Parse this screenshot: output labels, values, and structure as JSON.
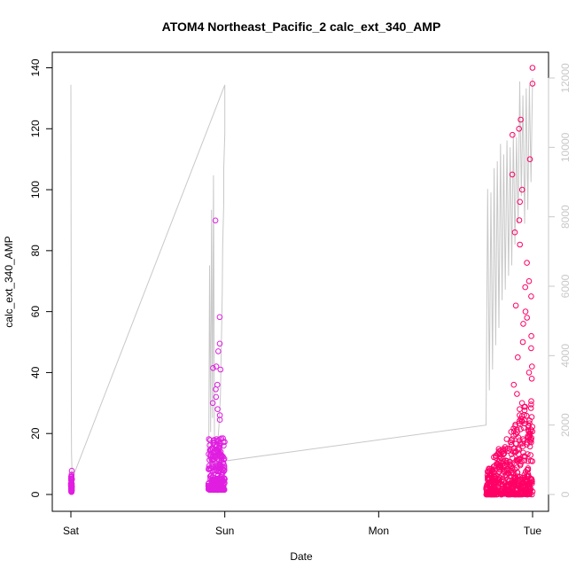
{
  "chart_data": {
    "type": "scatter",
    "title": "ATOM4 Northeast_Pacific_2 calc_ext_340_AMP",
    "xlabel": "Date",
    "ylabel": "calc_ext_340_AMP",
    "x_ticks": [
      "Sat",
      "Sun",
      "Mon",
      "Tue"
    ],
    "xlim": [
      "Sat 00:00",
      "Tue 00:00"
    ],
    "ylim": [
      0,
      140
    ],
    "y_ticks": [
      0,
      20,
      40,
      60,
      80,
      100,
      120,
      140
    ],
    "y2_ticks": [
      0,
      2000,
      4000,
      6000,
      8000,
      10000,
      12000
    ],
    "y2_lim": [
      0,
      12000
    ],
    "grid": false,
    "legend": "none",
    "colors": {
      "points_low": "#e01ee0",
      "points_high": "#ff0066",
      "secondary_line": "#c8c8c8",
      "axis": "#000000",
      "secondary_axis": "#c8c8c8"
    },
    "series": [
      {
        "role": "points",
        "axis": "left",
        "clusters": [
          {
            "x_start": "Sat 00:00",
            "x_end": "Sat 00:10",
            "y_min": 0.8,
            "y_max": 8,
            "peaks": [
              7.8,
              6.5,
              5.9,
              5.2
            ]
          },
          {
            "x_start": "Sat 21:25",
            "x_end": "Sun 00:00",
            "y_min": 1.5,
            "y_max": 90,
            "peaks": [
              89.9,
              58.2,
              49.5,
              47.0,
              42.0,
              41.5,
              41.0,
              36.0,
              34.5,
              32.0,
              30.0,
              28.0,
              26.0,
              24.5
            ]
          },
          {
            "x_start": "Mon 16:45",
            "x_end": "Tue 00:00",
            "y_min": 0,
            "y_max": 140,
            "peaks": [
              140.0,
              134.8,
              123.0,
              120.0,
              118.0,
              110.0,
              105.0,
              100.0,
              96.0,
              90.0,
              86.0,
              82.0,
              76.0,
              70.0,
              68.0,
              65.0,
              62.0,
              60.0,
              58.0,
              56.0,
              52.0,
              50.0,
              48.0,
              45.0,
              42.0,
              40.0,
              38.0,
              36.0,
              33.0,
              30.0,
              28.0,
              26.0,
              24.0
            ]
          }
        ]
      },
      {
        "role": "line",
        "axis": "right",
        "x": [
          "Sat 00:00",
          "Sat 00:04",
          "Sat 00:06",
          "Sat 00:08",
          "Sat 00:10",
          "Sat 00:12",
          "Sun 00:00",
          "Sun 00:00",
          "Sun 00:00",
          "Sat 23:50",
          "Sat 23:50",
          "Sat 23:40",
          "Sat 23:36",
          "Sat 23:30",
          "Sat 23:24",
          "Sat 23:20",
          "Sat 23:10",
          "Sat 23:00",
          "Sat 22:50",
          "Sat 22:42",
          "Sat 22:34",
          "Sat 22:24",
          "Sat 22:14",
          "Sat 22:06",
          "Sat 21:56",
          "Sat 21:48",
          "Sat 21:38",
          "Sat 21:30",
          "Sat 21:25",
          "Mon 16:45",
          "Mon 17:00",
          "Mon 17:15",
          "Mon 17:30",
          "Mon 17:45",
          "Mon 18:00",
          "Mon 18:15",
          "Mon 18:30",
          "Mon 18:45",
          "Mon 19:00",
          "Mon 19:15",
          "Mon 19:30",
          "Mon 19:45",
          "Mon 20:00",
          "Mon 20:15",
          "Mon 20:30",
          "Mon 20:45",
          "Mon 21:00",
          "Mon 21:15",
          "Mon 21:30",
          "Mon 21:45",
          "Mon 22:00",
          "Mon 22:15",
          "Mon 22:30",
          "Mon 22:45",
          "Mon 23:00",
          "Mon 23:15",
          "Mon 23:30",
          "Mon 23:45",
          "Tue 00:00"
        ],
        "y": [
          11800,
          2300,
          1200,
          900,
          700,
          450,
          11800,
          10800,
          10400,
          9400,
          8400,
          7200,
          5800,
          4600,
          3700,
          2900,
          2200,
          1700,
          1350,
          1050,
          950,
          1000,
          9200,
          2200,
          8200,
          1800,
          6600,
          1300,
          900,
          2000,
          8800,
          3000,
          8700,
          3600,
          9400,
          4300,
          9600,
          4800,
          10100,
          5600,
          9800,
          5900,
          10200,
          6300,
          10000,
          6600,
          10400,
          7200,
          10300,
          7800,
          11900,
          8600,
          11500,
          7800,
          11700,
          8200,
          11800,
          9000,
          12000
        ]
      }
    ]
  }
}
